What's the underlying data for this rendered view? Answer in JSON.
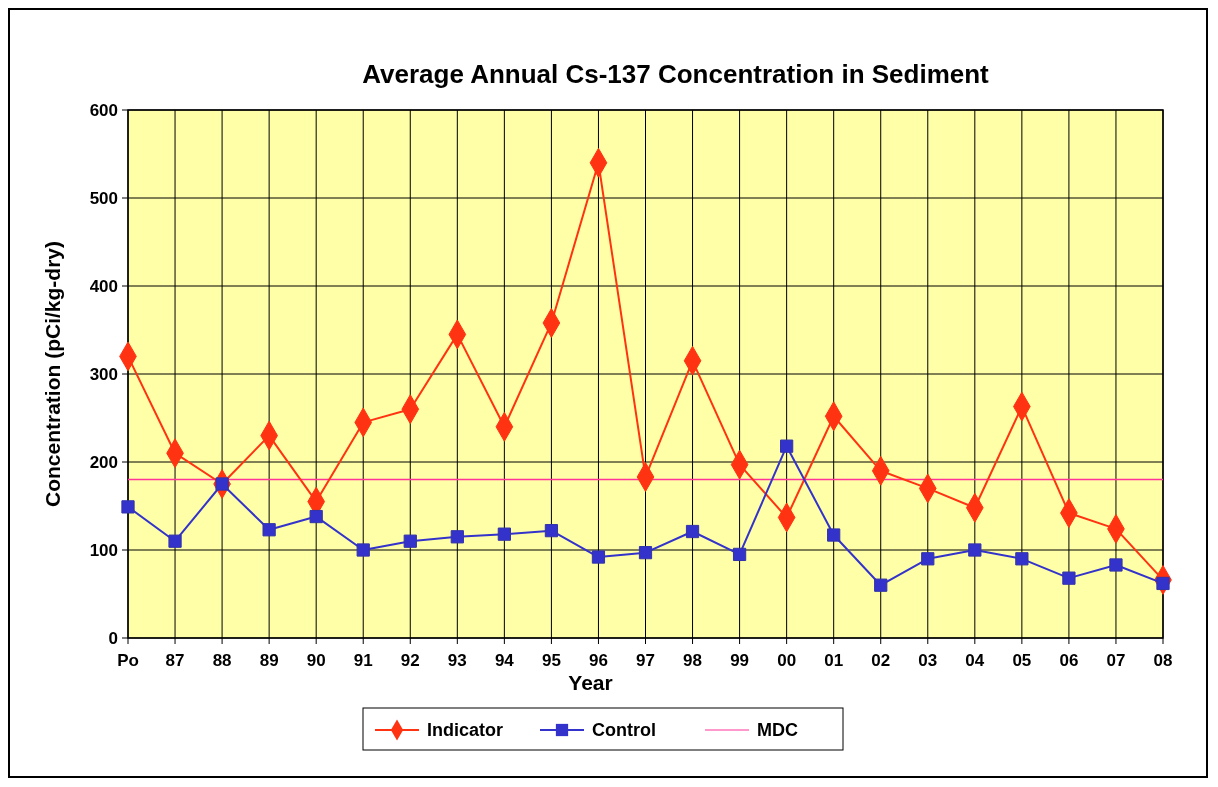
{
  "chart_data": {
    "type": "line",
    "title": "Average Annual Cs-137 Concentration in Sediment",
    "xlabel": "Year",
    "ylabel": "Concentration (pCi/kg-dry)",
    "categories": [
      "Po",
      "87",
      "88",
      "89",
      "90",
      "91",
      "92",
      "93",
      "94",
      "95",
      "96",
      "97",
      "98",
      "99",
      "00",
      "01",
      "02",
      "03",
      "04",
      "05",
      "06",
      "07",
      "08"
    ],
    "series": [
      {
        "name": "Indicator",
        "color": "#ff3311",
        "marker": "diamond",
        "values": [
          320,
          210,
          175,
          230,
          155,
          245,
          260,
          345,
          240,
          358,
          540,
          183,
          315,
          197,
          137,
          252,
          190,
          170,
          148,
          263,
          142,
          124,
          66
        ]
      },
      {
        "name": "Control",
        "color": "#3333cc",
        "marker": "square",
        "values": [
          149,
          110,
          175,
          123,
          138,
          100,
          110,
          115,
          118,
          122,
          92,
          97,
          121,
          95,
          218,
          117,
          60,
          90,
          100,
          90,
          68,
          83,
          62
        ]
      }
    ],
    "ref_lines": [
      {
        "axis": "y",
        "value": 180,
        "label": "MDC",
        "color": "#ff3399"
      }
    ],
    "ylim": [
      0,
      600
    ],
    "yticks": [
      0,
      100,
      200,
      300,
      400,
      500,
      600
    ],
    "grid": true,
    "legend": "bottom"
  }
}
